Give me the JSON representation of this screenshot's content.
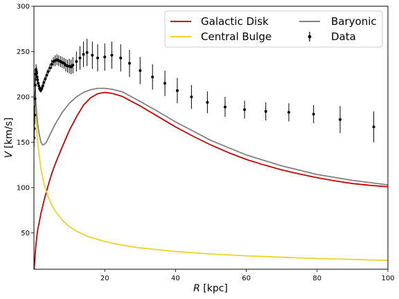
{
  "chart_data": {
    "type": "line",
    "xlabel": "R [kpc]",
    "ylabel": "V [km/s]",
    "xlim": [
      0,
      100
    ],
    "ylim": [
      10,
      300
    ],
    "xticks": [
      20,
      40,
      60,
      80,
      100
    ],
    "yticks": [
      50,
      100,
      150,
      200,
      250,
      300
    ],
    "grid": false,
    "legend_position": "top-right",
    "colors": {
      "disk": "#cc0000",
      "bulge": "#f0d22a",
      "baryonic": "#808080",
      "data": "#000000"
    },
    "series": [
      {
        "name": "Galactic Disk",
        "color": "#cc0000",
        "x": [
          0.05,
          0.5,
          1,
          2,
          3,
          4,
          5,
          6,
          8,
          10,
          12,
          14,
          16,
          18,
          20,
          22,
          25,
          30,
          35,
          40,
          45,
          50,
          55,
          60,
          65,
          70,
          75,
          80,
          85,
          90,
          95,
          100
        ],
        "y": [
          10,
          35,
          52,
          72,
          88,
          102,
          115,
          126,
          145,
          163,
          178,
          191,
          199,
          203.5,
          205,
          204,
          200.5,
          190,
          178.5,
          167,
          156.5,
          147,
          138.5,
          131,
          125,
          119.5,
          115,
          111,
          107.5,
          104.5,
          102.5,
          101
        ]
      },
      {
        "name": "Central Bulge",
        "color": "#f0d22a",
        "x": [
          0.05,
          0.3,
          0.6,
          1,
          1.5,
          2,
          3,
          4,
          5,
          6,
          8,
          10,
          12,
          15,
          20,
          25,
          30,
          40,
          50,
          60,
          70,
          80,
          90,
          100
        ],
        "y": [
          200,
          205,
          170,
          152,
          135,
          120,
          102,
          90,
          81,
          74,
          64,
          57,
          52,
          46.5,
          40.5,
          36.5,
          33.5,
          29.5,
          26.8,
          24.8,
          23.2,
          21.8,
          20.8,
          19.8
        ]
      },
      {
        "name": "Baryonic",
        "color": "#808080",
        "x": [
          0.05,
          0.3,
          0.6,
          1,
          1.5,
          2,
          2.5,
          3,
          3.5,
          4,
          5,
          6,
          8,
          10,
          12,
          14,
          16,
          18,
          20,
          22,
          25,
          30,
          35,
          40,
          50,
          60,
          70,
          80,
          90,
          100
        ],
        "y": [
          230,
          215,
          190,
          172,
          158,
          150,
          147,
          148,
          150,
          154,
          162,
          170,
          183,
          193,
          200,
          205,
          208,
          209.5,
          209.5,
          208.5,
          205.5,
          195,
          184,
          172.5,
          152,
          136,
          124,
          114.5,
          108,
          103
        ]
      },
      {
        "name": "Data",
        "color": "#000000",
        "x": [
          0.05,
          0.1,
          0.2,
          0.3,
          0.4,
          0.5,
          0.6,
          0.7,
          0.8,
          0.9,
          1.0,
          1.2,
          1.4,
          1.6,
          1.8,
          2.0,
          2.2,
          2.5,
          2.8,
          3.2,
          3.6,
          4.0,
          4.5,
          5.0,
          5.5,
          6.0,
          6.5,
          7.0,
          7.5,
          8.0,
          8.5,
          9.0,
          9.5,
          10.0,
          10.5,
          11.0,
          12.0,
          13.0,
          14.0,
          15.0,
          16.5,
          18.0,
          20.0,
          22.0,
          24.5,
          27.0,
          30.0,
          33.5,
          37.0,
          40.5,
          44.5,
          49.0,
          54.0,
          59.5,
          65.5,
          72.0,
          79.0,
          86.5,
          96.0
        ],
        "y": [
          155,
          165,
          180,
          198,
          213,
          225,
          230,
          228,
          226,
          222,
          219,
          215,
          212,
          209,
          208,
          208,
          209,
          212,
          216,
          220,
          224,
          228,
          232,
          236,
          239,
          240,
          241,
          240,
          239,
          238,
          237,
          235,
          234,
          234,
          233,
          235,
          239,
          243,
          247,
          249,
          246,
          243,
          244,
          246,
          243,
          237,
          229,
          222,
          215,
          207,
          200,
          194,
          189,
          186,
          184,
          183,
          181,
          175,
          167
        ],
        "yerr": [
          10,
          10,
          10,
          9,
          8,
          7,
          6,
          5,
          5,
          5,
          4,
          4,
          4,
          3,
          3,
          3,
          3,
          3,
          3,
          3,
          3,
          3,
          4,
          5,
          5,
          6,
          6,
          6,
          6,
          6,
          6,
          7,
          7,
          8,
          8,
          9,
          11,
          13,
          14,
          15,
          15,
          15,
          15,
          15,
          15,
          15,
          15,
          14,
          14,
          14,
          13,
          12,
          11,
          10,
          10,
          10,
          10,
          15,
          17
        ]
      }
    ]
  }
}
